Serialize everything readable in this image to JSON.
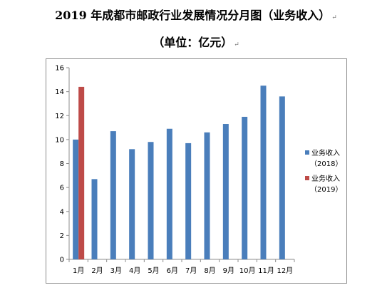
{
  "title": "2019 年成都市邮政行业发展情况分月图（业务收入）",
  "subtitle": "（单位：亿元）",
  "para_mark": "↵",
  "chart_data": {
    "type": "bar",
    "title": "2019 年成都市邮政行业发展情况分月图（业务收入）",
    "subtitle": "（单位：亿元）",
    "categories": [
      "1月",
      "2月",
      "3月",
      "4月",
      "5月",
      "6月",
      "7月",
      "8月",
      "9月",
      "10月",
      "11月",
      "12月"
    ],
    "series": [
      {
        "name": "业务收入（2018）",
        "legend_line1": "业务收入",
        "legend_line2": "（2018）",
        "color": "#4a7ebb",
        "values": [
          10.0,
          6.7,
          10.7,
          9.2,
          9.8,
          10.9,
          9.7,
          10.6,
          11.3,
          11.9,
          14.5,
          13.6
        ]
      },
      {
        "name": "业务收入（2019）",
        "legend_line1": "业务收入",
        "legend_line2": "（2019）",
        "color": "#be4b48",
        "values": [
          14.4,
          null,
          null,
          null,
          null,
          null,
          null,
          null,
          null,
          null,
          null,
          null
        ]
      }
    ],
    "ylim": [
      0,
      16
    ],
    "yticks": [
      0,
      2,
      4,
      6,
      8,
      10,
      12,
      14,
      16
    ],
    "grid": false,
    "legend_position": "right"
  }
}
